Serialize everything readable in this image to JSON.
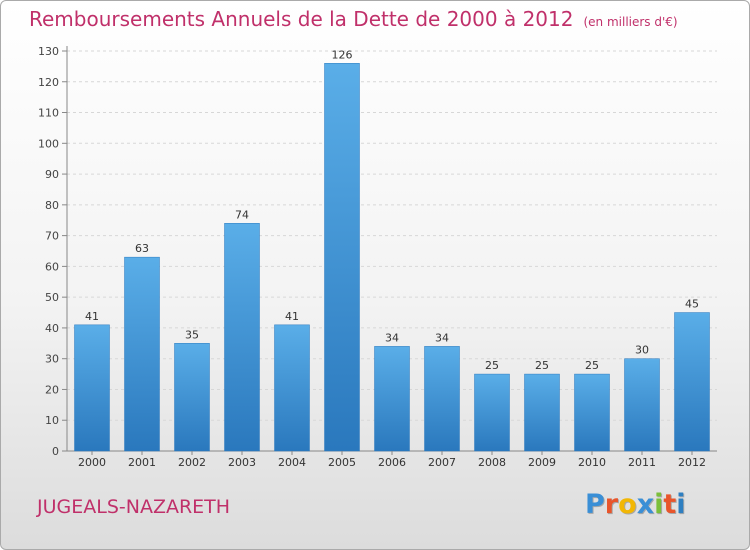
{
  "chart_data": {
    "type": "bar",
    "title": "Remboursements Annuels de la Dette de 2000 à 2012",
    "unit_note": "(en milliers d'€)",
    "categories": [
      "2000",
      "2001",
      "2002",
      "2003",
      "2004",
      "2005",
      "2006",
      "2007",
      "2008",
      "2009",
      "2010",
      "2011",
      "2012"
    ],
    "values": [
      41,
      63,
      35,
      74,
      41,
      126,
      34,
      34,
      25,
      25,
      25,
      30,
      45
    ],
    "ylim": [
      0,
      130
    ],
    "yticks": [
      0,
      10,
      20,
      30,
      40,
      50,
      60,
      70,
      80,
      90,
      100,
      110,
      120,
      130
    ],
    "grid": true,
    "legend": "none",
    "bar_color": "#3a8fd6"
  },
  "footer": {
    "place": "JUGEALS-NAZARETH",
    "logo_text": "Proxiti",
    "logo_colors": [
      "#3a8fd6",
      "#e8552b",
      "#f2b705",
      "#3a8fd6",
      "#7bbf3a",
      "#e8552b",
      "#2e7fc1"
    ]
  },
  "colors": {
    "title": "#c0306a",
    "place": "#c0306a"
  }
}
